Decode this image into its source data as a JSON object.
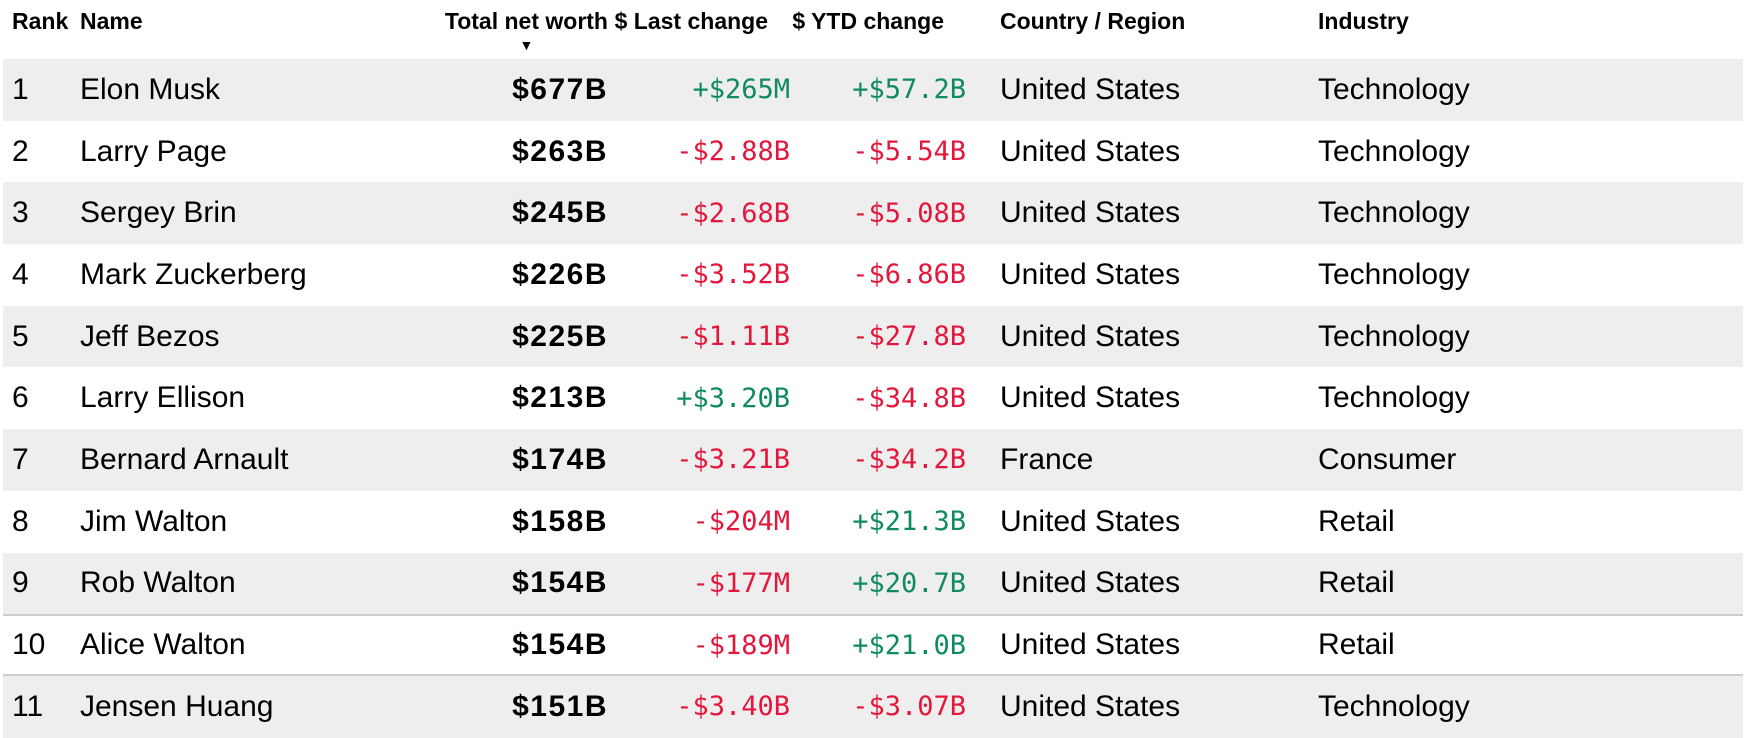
{
  "colors": {
    "positive": "#0f8a62",
    "negative": "#e3173c",
    "row_alt_bg": "#eeeeee",
    "highlight_border": "#cccccc",
    "text": "#000000"
  },
  "table": {
    "sort_icon": "▼",
    "columns": [
      {
        "id": "rank",
        "label": "Rank",
        "align": "left",
        "sorted": false
      },
      {
        "id": "name",
        "label": "Name",
        "align": "left",
        "sorted": false
      },
      {
        "id": "worth",
        "label": "Total net worth",
        "align": "right",
        "sorted": true
      },
      {
        "id": "last",
        "label": "$ Last change",
        "align": "right",
        "sorted": false
      },
      {
        "id": "ytd",
        "label": "$ YTD change",
        "align": "right",
        "sorted": false
      },
      {
        "id": "country",
        "label": "Country / Region",
        "align": "left",
        "sorted": false
      },
      {
        "id": "industry",
        "label": "Industry",
        "align": "left",
        "sorted": false
      }
    ],
    "rows": [
      {
        "rank": "1",
        "name": "Elon Musk",
        "net_worth": "$677B",
        "last_change": "+$265M",
        "last_dir": "pos",
        "ytd_change": "+$57.2B",
        "ytd_dir": "pos",
        "country": "United States",
        "industry": "Technology",
        "highlighted": false
      },
      {
        "rank": "2",
        "name": "Larry Page",
        "net_worth": "$263B",
        "last_change": "-$2.88B",
        "last_dir": "neg",
        "ytd_change": "-$5.54B",
        "ytd_dir": "neg",
        "country": "United States",
        "industry": "Technology",
        "highlighted": false
      },
      {
        "rank": "3",
        "name": "Sergey Brin",
        "net_worth": "$245B",
        "last_change": "-$2.68B",
        "last_dir": "neg",
        "ytd_change": "-$5.08B",
        "ytd_dir": "neg",
        "country": "United States",
        "industry": "Technology",
        "highlighted": false
      },
      {
        "rank": "4",
        "name": "Mark Zuckerberg",
        "net_worth": "$226B",
        "last_change": "-$3.52B",
        "last_dir": "neg",
        "ytd_change": "-$6.86B",
        "ytd_dir": "neg",
        "country": "United States",
        "industry": "Technology",
        "highlighted": false
      },
      {
        "rank": "5",
        "name": "Jeff Bezos",
        "net_worth": "$225B",
        "last_change": "-$1.11B",
        "last_dir": "neg",
        "ytd_change": "-$27.8B",
        "ytd_dir": "neg",
        "country": "United States",
        "industry": "Technology",
        "highlighted": false
      },
      {
        "rank": "6",
        "name": "Larry Ellison",
        "net_worth": "$213B",
        "last_change": "+$3.20B",
        "last_dir": "pos",
        "ytd_change": "-$34.8B",
        "ytd_dir": "neg",
        "country": "United States",
        "industry": "Technology",
        "highlighted": false
      },
      {
        "rank": "7",
        "name": "Bernard Arnault",
        "net_worth": "$174B",
        "last_change": "-$3.21B",
        "last_dir": "neg",
        "ytd_change": "-$34.2B",
        "ytd_dir": "neg",
        "country": "France",
        "industry": "Consumer",
        "highlighted": false
      },
      {
        "rank": "8",
        "name": "Jim Walton",
        "net_worth": "$158B",
        "last_change": "-$204M",
        "last_dir": "neg",
        "ytd_change": "+$21.3B",
        "ytd_dir": "pos",
        "country": "United States",
        "industry": "Retail",
        "highlighted": false
      },
      {
        "rank": "9",
        "name": "Rob Walton",
        "net_worth": "$154B",
        "last_change": "-$177M",
        "last_dir": "neg",
        "ytd_change": "+$20.7B",
        "ytd_dir": "pos",
        "country": "United States",
        "industry": "Retail",
        "highlighted": false
      },
      {
        "rank": "10",
        "name": "Alice Walton",
        "net_worth": "$154B",
        "last_change": "-$189M",
        "last_dir": "neg",
        "ytd_change": "+$21.0B",
        "ytd_dir": "pos",
        "country": "United States",
        "industry": "Retail",
        "highlighted": true
      },
      {
        "rank": "11",
        "name": "Jensen Huang",
        "net_worth": "$151B",
        "last_change": "-$3.40B",
        "last_dir": "neg",
        "ytd_change": "-$3.07B",
        "ytd_dir": "neg",
        "country": "United States",
        "industry": "Technology",
        "highlighted": false
      }
    ]
  }
}
